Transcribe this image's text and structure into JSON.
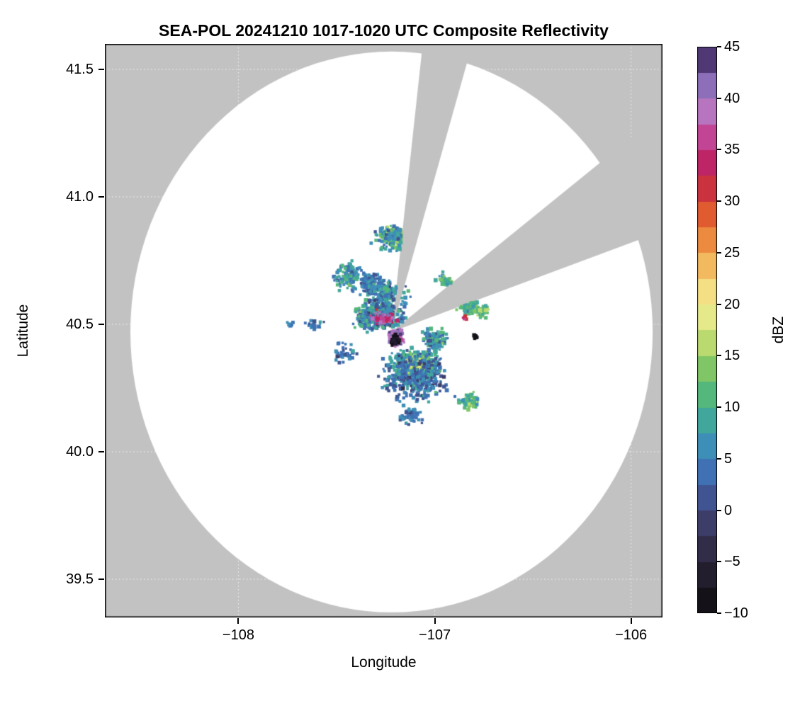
{
  "chart_data": {
    "type": "heatmap",
    "title": "SEA-POL 20241210 1017-1020 UTC Composite Reflectivity",
    "xlabel": "Longitude",
    "ylabel": "Latitude",
    "xlim": [
      -108.68,
      -105.84
    ],
    "ylim": [
      39.35,
      41.6
    ],
    "x_ticks": [
      -108,
      -107,
      -106
    ],
    "x_tick_labels": [
      "−108",
      "−107",
      "−106"
    ],
    "y_ticks": [
      39.5,
      40.0,
      40.5,
      41.0,
      41.5
    ],
    "y_tick_labels": [
      "39.5",
      "40.0",
      "40.5",
      "41.0",
      "41.5"
    ],
    "grid": true,
    "grid_style": "dotted-white",
    "colorbar": {
      "label": "dBZ",
      "min": -10,
      "max": 45,
      "bin_size": 2.5,
      "ticks": [
        -10,
        -5,
        0,
        5,
        10,
        15,
        20,
        25,
        30,
        35,
        40,
        45
      ],
      "tick_labels": [
        "−10",
        "−5",
        "0",
        "5",
        "10",
        "15",
        "20",
        "25",
        "30",
        "35",
        "40",
        "45"
      ],
      "colormap_stops": [
        [
          -10,
          "#0b0b0d"
        ],
        [
          -7.5,
          "#1c1822"
        ],
        [
          -5,
          "#2a2439"
        ],
        [
          -2.5,
          "#383457"
        ],
        [
          0,
          "#41467a"
        ],
        [
          2.5,
          "#3f62a8"
        ],
        [
          5,
          "#3f80bf"
        ],
        [
          7.5,
          "#3d9dae"
        ],
        [
          10,
          "#44b18c"
        ],
        [
          12.5,
          "#63bd69"
        ],
        [
          15,
          "#9ecf62"
        ],
        [
          17.5,
          "#d5e47c"
        ],
        [
          20,
          "#f4ee97"
        ],
        [
          22.5,
          "#f3cf70"
        ],
        [
          25,
          "#f0a24e"
        ],
        [
          27.5,
          "#e77231"
        ],
        [
          30,
          "#d8432c"
        ],
        [
          32.5,
          "#bc2050"
        ],
        [
          35,
          "#bd2a7b"
        ],
        [
          37.5,
          "#c75fae"
        ],
        [
          40,
          "#a88bd0"
        ],
        [
          42.5,
          "#6f52a0"
        ],
        [
          45,
          "#2e1e45"
        ]
      ]
    },
    "radar": {
      "center_lon": -107.22,
      "center_lat": 40.47,
      "radius_lon_deg": 1.33,
      "radius_lat_deg": 1.1,
      "blocked_sectors_az_deg": [
        [
          8,
          20
        ],
        [
          58,
          74
        ]
      ],
      "masked_color": "#c2c2c2",
      "clear_color": "#ffffff"
    },
    "echo_clusters": [
      {
        "name": "south-main",
        "lon": -107.1,
        "lat": 40.335,
        "sigma_lon": 0.085,
        "sigma_lat": 0.05,
        "cells": 650,
        "dbz": 9,
        "dbz_spread": 8
      },
      {
        "name": "south-core",
        "lon": -107.105,
        "lat": 40.345,
        "sigma_lon": 0.035,
        "sigma_lat": 0.025,
        "cells": 240,
        "dbz": 16,
        "dbz_spread": 4
      },
      {
        "name": "south-halo",
        "lon": -107.1,
        "lat": 40.295,
        "sigma_lon": 0.14,
        "sigma_lat": 0.08,
        "cells": 360,
        "dbz": 4,
        "dbz_spread": 7
      },
      {
        "name": "nw-band",
        "lon": -107.28,
        "lat": 40.53,
        "sigma_lon": 0.1,
        "sigma_lat": 0.04,
        "cells": 420,
        "dbz": 6,
        "dbz_spread": 8
      },
      {
        "name": "nw-band-purple",
        "lon": -107.26,
        "lat": 40.525,
        "sigma_lon": 0.06,
        "sigma_lat": 0.025,
        "cells": 70,
        "dbz": 37,
        "dbz_spread": 7
      },
      {
        "name": "center-dark-knot",
        "lon": -107.195,
        "lat": 40.45,
        "sigma_lon": 0.03,
        "sigma_lat": 0.026,
        "cells": 150,
        "dbz": 41,
        "dbz_spread": 5
      },
      {
        "name": "center-black-flecks",
        "lon": -107.205,
        "lat": 40.44,
        "sigma_lon": 0.02,
        "sigma_lat": 0.015,
        "cells": 35,
        "dbz": -8,
        "dbz_spread": 3
      },
      {
        "name": "north-yellow-patch",
        "lon": -107.21,
        "lat": 40.845,
        "sigma_lon": 0.05,
        "sigma_lat": 0.032,
        "cells": 170,
        "dbz": 13,
        "dbz_spread": 5
      },
      {
        "name": "north-halo",
        "lon": -107.21,
        "lat": 40.84,
        "sigma_lon": 0.08,
        "sigma_lat": 0.05,
        "cells": 90,
        "dbz": 6,
        "dbz_spread": 6
      },
      {
        "name": "nnw-scatter",
        "lon": -107.44,
        "lat": 40.69,
        "sigma_lon": 0.06,
        "sigma_lat": 0.045,
        "cells": 120,
        "dbz": 7,
        "dbz_spread": 7
      },
      {
        "name": "n-scatter",
        "lon": -107.33,
        "lat": 40.67,
        "sigma_lon": 0.05,
        "sigma_lat": 0.035,
        "cells": 90,
        "dbz": 5,
        "dbz_spread": 6
      },
      {
        "name": "center-north-fill",
        "lon": -107.24,
        "lat": 40.615,
        "sigma_lon": 0.09,
        "sigma_lat": 0.045,
        "cells": 220,
        "dbz": 5,
        "dbz_spread": 8
      },
      {
        "name": "east-fill",
        "lon": -107.0,
        "lat": 40.44,
        "sigma_lon": 0.05,
        "sigma_lat": 0.035,
        "cells": 110,
        "dbz": 7,
        "dbz_spread": 8
      },
      {
        "name": "ene-specks",
        "lon": -106.83,
        "lat": 40.575,
        "sigma_lon": 0.045,
        "sigma_lat": 0.03,
        "cells": 100,
        "dbz": 10,
        "dbz_spread": 8
      },
      {
        "name": "ene-small",
        "lon": -106.76,
        "lat": 40.555,
        "sigma_lon": 0.028,
        "sigma_lat": 0.022,
        "cells": 55,
        "dbz": 12,
        "dbz_spread": 6
      },
      {
        "name": "ene-pink-speck",
        "lon": -106.85,
        "lat": 40.53,
        "sigma_lon": 0.012,
        "sigma_lat": 0.01,
        "cells": 7,
        "dbz": 33,
        "dbz_spread": 3
      },
      {
        "name": "east-black-dot",
        "lon": -106.79,
        "lat": 40.45,
        "sigma_lon": 0.01,
        "sigma_lat": 0.008,
        "cells": 16,
        "dbz": -9,
        "dbz_spread": 2
      },
      {
        "name": "se-specks",
        "lon": -106.82,
        "lat": 40.2,
        "sigma_lon": 0.045,
        "sigma_lat": 0.028,
        "cells": 85,
        "dbz": 11,
        "dbz_spread": 6
      },
      {
        "name": "south-tail",
        "lon": -107.12,
        "lat": 40.14,
        "sigma_lon": 0.045,
        "sigma_lat": 0.028,
        "cells": 60,
        "dbz": 5,
        "dbz_spread": 6
      },
      {
        "name": "west-dots",
        "lon": -107.6,
        "lat": 40.5,
        "sigma_lon": 0.045,
        "sigma_lat": 0.018,
        "cells": 22,
        "dbz": 5,
        "dbz_spread": 5
      },
      {
        "name": "sw-dots",
        "lon": -107.46,
        "lat": 40.39,
        "sigma_lon": 0.05,
        "sigma_lat": 0.03,
        "cells": 35,
        "dbz": 4,
        "dbz_spread": 5
      },
      {
        "name": "far-west-speck",
        "lon": -107.74,
        "lat": 40.5,
        "sigma_lon": 0.02,
        "sigma_lat": 0.012,
        "cells": 8,
        "dbz": 6,
        "dbz_spread": 4
      },
      {
        "name": "ne-gap-specks",
        "lon": -106.95,
        "lat": 40.67,
        "sigma_lon": 0.03,
        "sigma_lat": 0.025,
        "cells": 40,
        "dbz": 10,
        "dbz_spread": 6
      }
    ]
  }
}
